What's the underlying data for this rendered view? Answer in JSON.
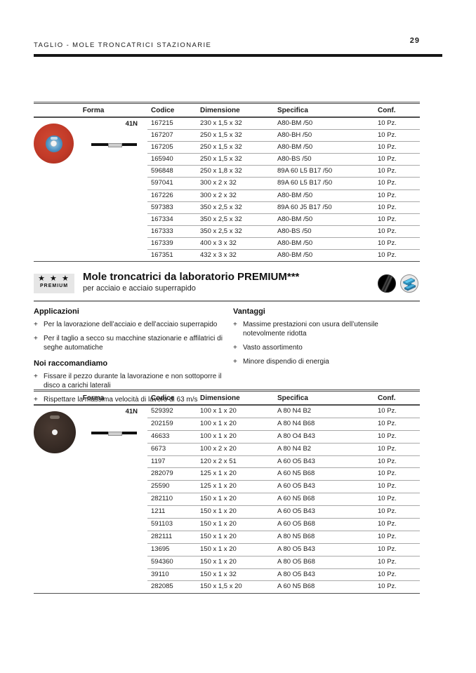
{
  "header": {
    "title": "TAGLIO - MOLE TRONCATRICI STAZIONARIE",
    "page_number": "29"
  },
  "table1": {
    "columns": [
      "Forma",
      "Codice",
      "Dimensione",
      "Specifica",
      "Conf."
    ],
    "forma": {
      "code": "41N",
      "disc_icon": "red-cutting-disc-icon",
      "profile_icon": "disc-side-profile-icon"
    },
    "rows": [
      [
        "167215",
        "230 x 1,5 x 32",
        "A80-BM /50",
        "10 Pz."
      ],
      [
        "167207",
        "250 x 1,5 x 32",
        "A80-BH /50",
        "10 Pz."
      ],
      [
        "167205",
        "250 x 1,5 x 32",
        "A80-BM /50",
        "10 Pz."
      ],
      [
        "165940",
        "250 x 1,5 x 32",
        "A80-BS /50",
        "10 Pz."
      ],
      [
        "596848",
        "250 x 1,8 x 32",
        "89A 60 L5 B17 /50",
        "10 Pz."
      ],
      [
        "597041",
        "300 x 2 x 32",
        "89A 60 L5 B17 /50",
        "10 Pz."
      ],
      [
        "167226",
        "300 x 2 x 32",
        "A80-BM /50",
        "10 Pz."
      ],
      [
        "597383",
        "350 x 2,5 x 32",
        "89A 60 J5 B17 /50",
        "10 Pz."
      ],
      [
        "167334",
        "350 x 2,5 x 32",
        "A80-BM /50",
        "10 Pz."
      ],
      [
        "167333",
        "350 x 2,5 x 32",
        "A80-BS /50",
        "10 Pz."
      ],
      [
        "167339",
        "400 x 3 x 32",
        "A80-BM /50",
        "10 Pz."
      ],
      [
        "167351",
        "432 x 3 x 32",
        "A80-BM /50",
        "10 Pz."
      ]
    ]
  },
  "section": {
    "badge": {
      "stars": "★ ★ ★",
      "label": "PREMIUM"
    },
    "title": "Mole troncatrici da laboratorio PREMIUM***",
    "subtitle": "per acciaio e acciaio superrapido",
    "icons": [
      "steel-material-icon",
      "steel-beam-icon"
    ]
  },
  "info": {
    "bullet": "+",
    "applications": {
      "heading": "Applicazioni",
      "items": [
        "Per la lavorazione dell’acciaio e dell’acciaio superrapido",
        "Per il taglio a secco su macchine stazionarie e affilatrici di seghe automatiche"
      ]
    },
    "recommendations": {
      "heading": "Noi raccomandiamo",
      "items": [
        "Fissare il pezzo durante la lavorazione e non sottoporre il disco a carichi laterali",
        "Rispettare la massima velocità di lavoro di 63 m/s"
      ]
    },
    "advantages": {
      "heading": "Vantaggi",
      "items": [
        "Massime prestazioni con usura dell’utensile notevolmente ridotta",
        "Vasto assortimento",
        "Minore dispendio di energia"
      ]
    }
  },
  "table2": {
    "columns": [
      "Forma",
      "Codice",
      "Dimensione",
      "Specifica",
      "Conf."
    ],
    "forma": {
      "code": "41N",
      "disc_icon": "dark-cutting-disc-icon",
      "profile_icon": "disc-side-profile-icon"
    },
    "rows": [
      [
        "529392",
        "100 x 1 x 20",
        "A 80 N4 B2",
        "10 Pz."
      ],
      [
        "202159",
        "100 x 1 x 20",
        "A 80 N4 B68",
        "10 Pz."
      ],
      [
        "46633",
        "100 x 1 x 20",
        "A 80 O4 B43",
        "10 Pz."
      ],
      [
        "6673",
        "100 x 2 x 20",
        "A 80 N4 B2",
        "10 Pz."
      ],
      [
        "1197",
        "120 x 2 x 51",
        "A 60 O5 B43",
        "10 Pz."
      ],
      [
        "282079",
        "125 x 1 x 20",
        "A 60 N5 B68",
        "10 Pz."
      ],
      [
        "25590",
        "125 x 1 x 20",
        "A 60 O5 B43",
        "10 Pz."
      ],
      [
        "282110",
        "150 x 1 x 20",
        "A 60 N5 B68",
        "10 Pz."
      ],
      [
        "1211",
        "150 x 1 x 20",
        "A 60 O5 B43",
        "10 Pz."
      ],
      [
        "591103",
        "150 x 1 x 20",
        "A 60 O5 B68",
        "10 Pz."
      ],
      [
        "282111",
        "150 x 1 x 20",
        "A 80 N5 B68",
        "10 Pz."
      ],
      [
        "13695",
        "150 x 1 x 20",
        "A 80 O5 B43",
        "10 Pz."
      ],
      [
        "594360",
        "150 x 1 x 20",
        "A 80 O5 B68",
        "10 Pz."
      ],
      [
        "39110",
        "150 x 1 x 32",
        "A 80 O5 B43",
        "10 Pz."
      ],
      [
        "282085",
        "150 x 1,5 x 20",
        "A 60 N5 B68",
        "10 Pz."
      ]
    ]
  }
}
